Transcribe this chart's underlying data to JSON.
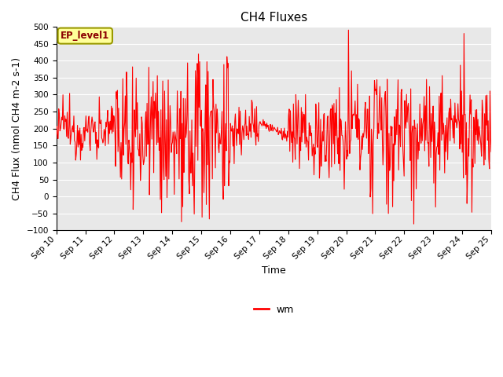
{
  "title": "CH4 Fluxes",
  "xlabel": "Time",
  "ylabel": "CH4 Flux (nmol CH4 m-2 s-1)",
  "ylim": [
    -100,
    500
  ],
  "yticks": [
    -100,
    -50,
    0,
    50,
    100,
    150,
    200,
    250,
    300,
    350,
    400,
    450,
    500
  ],
  "line_color": "red",
  "line_width": 0.8,
  "legend_label": "wm",
  "legend_box_label": "EP_level1",
  "legend_box_facecolor": "#FFFF99",
  "legend_box_edgecolor": "#999900",
  "plot_bg_color": "#e8e8e8",
  "fig_bg_color": "#ffffff",
  "title_fontsize": 11,
  "axis_label_fontsize": 9,
  "tick_label_fontsize": 7.5,
  "x_start_day": 10,
  "x_end_day": 25,
  "x_tick_days": [
    10,
    11,
    12,
    13,
    14,
    15,
    16,
    17,
    18,
    19,
    20,
    21,
    22,
    23,
    24,
    25
  ],
  "x_tick_labels": [
    "Sep 10",
    "Sep 11",
    "Sep 12",
    "Sep 13",
    "Sep 14",
    "Sep 15",
    "Sep 16",
    "Sep 17",
    "Sep 18",
    "Sep 19",
    "Sep 20",
    "Sep 21",
    "Sep 22",
    "Sep 23",
    "Sep 24",
    "Sep 25"
  ]
}
